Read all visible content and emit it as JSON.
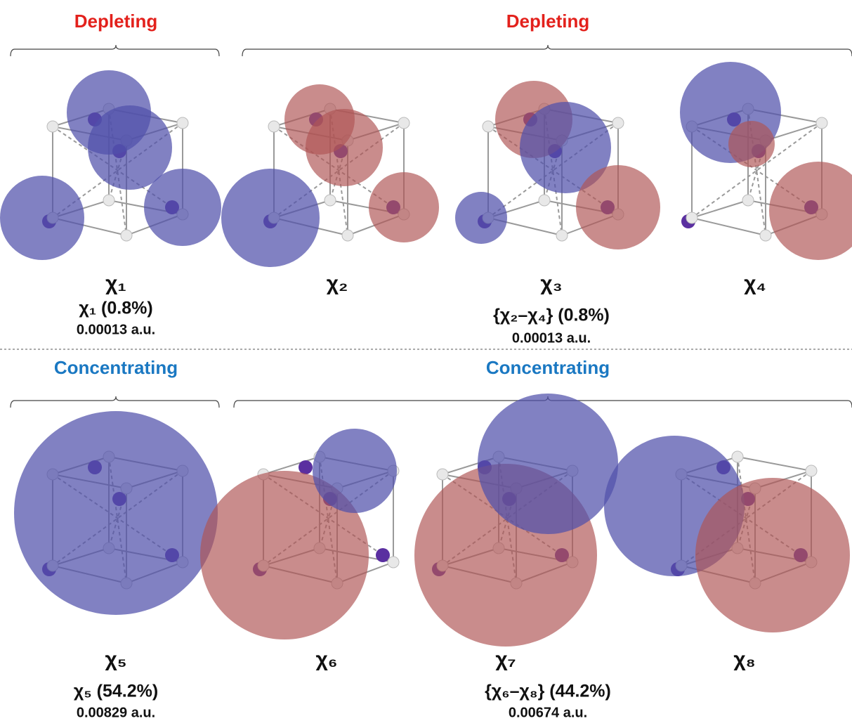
{
  "sections": [
    {
      "groups": [
        {
          "label": "Depleting",
          "panels": [
            {
              "label": "χ₁"
            }
          ],
          "caption": {
            "share": "χ₁ (0.8%)",
            "energy": "0.00013 a.u."
          }
        },
        {
          "label": "Depleting",
          "panels": [
            {
              "label": "χ₂"
            },
            {
              "label": "χ₃"
            },
            {
              "label": "χ₄"
            }
          ],
          "caption": {
            "share": "{χ₂–χ₄} (0.8%)",
            "energy": "0.00013 a.u."
          }
        }
      ]
    },
    {
      "groups": [
        {
          "label": "Concentrating",
          "panels": [
            {
              "label": "χ₅"
            }
          ],
          "caption": {
            "share": "χ₅ (54.2%)",
            "energy": "0.00829 a.u."
          }
        },
        {
          "label": "Concentrating",
          "panels": [
            {
              "label": "χ₆"
            },
            {
              "label": "χ₇"
            },
            {
              "label": "χ₈"
            }
          ],
          "caption": {
            "share": "{χ₆–χ₈} (44.2%)",
            "energy": "0.00674 a.u."
          }
        }
      ]
    }
  ]
}
